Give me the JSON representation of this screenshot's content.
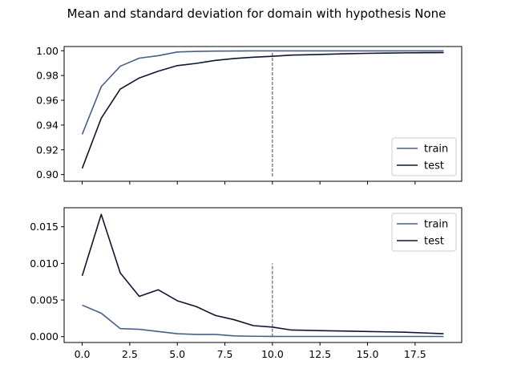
{
  "figure_title": "Mean and standard deviation for domain with hypothesis None",
  "colors": {
    "train": "#4a5f87",
    "test": "#0c1631",
    "vline": "#444444"
  },
  "chart_data": [
    {
      "type": "line",
      "title": "",
      "xlabel": "",
      "ylabel": "",
      "xlim": [
        -0.95,
        19.95
      ],
      "ylim": [
        0.8946,
        1.0034
      ],
      "yticks": [
        0.9,
        0.92,
        0.94,
        0.96,
        0.98,
        1.0
      ],
      "ytick_labels": [
        "0.90",
        "0.92",
        "0.94",
        "0.96",
        "0.98",
        "1.00"
      ],
      "xticks": [
        0,
        2.5,
        5,
        7.5,
        10,
        12.5,
        15,
        17.5
      ],
      "xtick_labels": [],
      "legend_position": "lower-right",
      "vline": {
        "x": 10,
        "ymin": 0.8985,
        "ymax": 1.0
      },
      "x": [
        0,
        1,
        2,
        3,
        4,
        5,
        6,
        7,
        8,
        9,
        10,
        11,
        12,
        13,
        14,
        15,
        16,
        17,
        18,
        19
      ],
      "series": [
        {
          "name": "train",
          "values": [
            0.9325,
            0.971,
            0.9875,
            0.994,
            0.996,
            0.999,
            0.9995,
            0.9997,
            0.9998,
            0.9999,
            0.9999,
            0.9999,
            0.9999,
            0.9999,
            0.9999,
            0.9999,
            0.9999,
            0.9999,
            0.9999,
            0.9999
          ]
        },
        {
          "name": "test",
          "values": [
            0.905,
            0.9455,
            0.969,
            0.978,
            0.9835,
            0.988,
            0.9898,
            0.9922,
            0.9937,
            0.9948,
            0.9955,
            0.9965,
            0.9968,
            0.9972,
            0.9976,
            0.9979,
            0.9981,
            0.9983,
            0.9984,
            0.9985
          ]
        }
      ]
    },
    {
      "type": "line",
      "title": "",
      "xlabel": "",
      "ylabel": "",
      "xlim": [
        -0.95,
        19.95
      ],
      "ylim": [
        -0.0008,
        0.0176
      ],
      "yticks": [
        0.0,
        0.005,
        0.01,
        0.015
      ],
      "ytick_labels": [
        "0.000",
        "0.005",
        "0.010",
        "0.015"
      ],
      "xticks": [
        0,
        2.5,
        5,
        7.5,
        10,
        12.5,
        15,
        17.5
      ],
      "xtick_labels": [
        "0.0",
        "2.5",
        "5.0",
        "7.5",
        "10.0",
        "12.5",
        "15.0",
        "17.5"
      ],
      "legend_position": "upper-right",
      "vline": {
        "x": 10,
        "ymin": 0.0,
        "ymax": 0.01
      },
      "x": [
        0,
        1,
        2,
        3,
        4,
        5,
        6,
        7,
        8,
        9,
        10,
        11,
        12,
        13,
        14,
        15,
        16,
        17,
        18,
        19
      ],
      "series": [
        {
          "name": "train",
          "values": [
            0.0043,
            0.0032,
            0.0011,
            0.001,
            0.0007,
            0.0004,
            0.0003,
            0.0003,
            0.0001,
            5e-05,
            3e-05,
            2e-05,
            2e-05,
            2e-05,
            2e-05,
            2e-05,
            2e-05,
            2e-05,
            2e-05,
            2e-05
          ]
        },
        {
          "name": "test",
          "values": [
            0.0083,
            0.0167,
            0.0087,
            0.0055,
            0.0064,
            0.0049,
            0.0041,
            0.0029,
            0.0023,
            0.0015,
            0.0013,
            0.0009,
            0.00085,
            0.0008,
            0.00075,
            0.0007,
            0.00065,
            0.0006,
            0.0005,
            0.0004
          ]
        }
      ]
    }
  ]
}
